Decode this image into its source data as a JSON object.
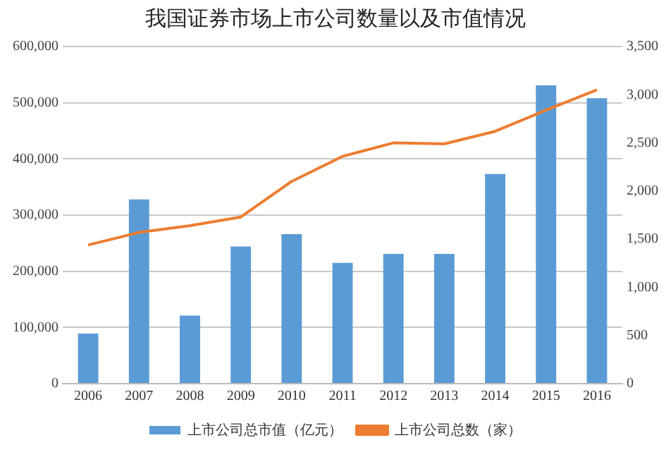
{
  "chart_data": {
    "type": "bar",
    "title": "我国证券市场上市公司数量以及市值情况",
    "categories": [
      "2006",
      "2007",
      "2008",
      "2009",
      "2010",
      "2011",
      "2012",
      "2013",
      "2014",
      "2015",
      "2016"
    ],
    "series": [
      {
        "name": "上市公司总市值（亿元）",
        "color": "#5b9bd5",
        "values": [
          89000,
          328000,
          121000,
          244000,
          266000,
          215000,
          231000,
          231000,
          373000,
          531000,
          508000
        ]
      },
      {
        "name": "上市公司总数（家）",
        "type": "line",
        "axis": "y2",
        "color": "#ed7d31",
        "values": [
          1440,
          1570,
          1640,
          1730,
          2100,
          2360,
          2500,
          2490,
          2620,
          2840,
          3050
        ]
      }
    ],
    "ylim": [
      0,
      600000
    ],
    "yticks": [
      {
        "value": 0,
        "label": "0"
      },
      {
        "value": 100000,
        "label": "100,000"
      },
      {
        "value": 200000,
        "label": "200,000"
      },
      {
        "value": 300000,
        "label": "300,000"
      },
      {
        "value": 400000,
        "label": "400,000"
      },
      {
        "value": 500000,
        "label": "500,000"
      },
      {
        "value": 600000,
        "label": "600,000"
      }
    ],
    "y2lim": [
      0,
      3500
    ],
    "y2ticks": [
      {
        "value": 0,
        "label": "0"
      },
      {
        "value": 500,
        "label": "500"
      },
      {
        "value": 1000,
        "label": "1,000"
      },
      {
        "value": 1500,
        "label": "1,500"
      },
      {
        "value": 2000,
        "label": "2,000"
      },
      {
        "value": 2500,
        "label": "2,500"
      },
      {
        "value": 3000,
        "label": "3,000"
      },
      {
        "value": 3500,
        "label": "3,500"
      }
    ],
    "grid": "y",
    "legend": "bottom",
    "marker": "none"
  }
}
